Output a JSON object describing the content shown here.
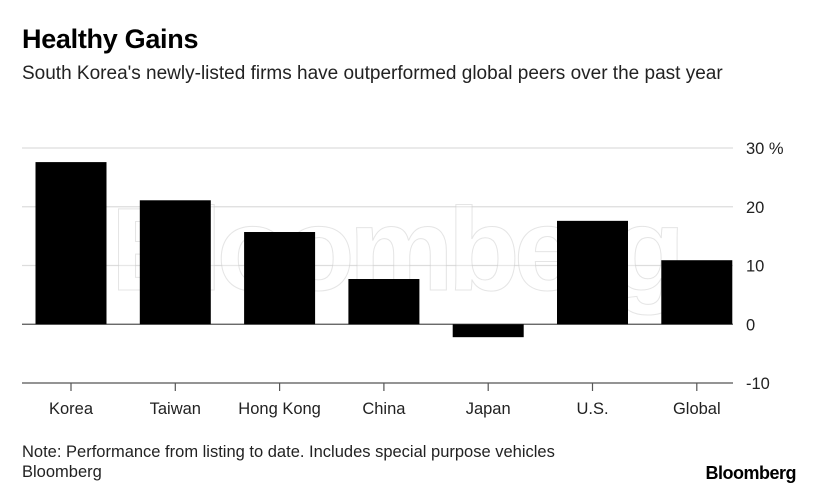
{
  "chart_data": {
    "type": "bar",
    "title": "Healthy Gains",
    "subtitle": "South Korea's newly-listed firms have outperformed global peers over the past year",
    "categories": [
      "Korea",
      "Taiwan",
      "Hong Kong",
      "China",
      "Japan",
      "U.S.",
      "Global"
    ],
    "values": [
      27.6,
      21.1,
      15.7,
      7.7,
      -2.2,
      17.6,
      10.9
    ],
    "ylim": [
      -10,
      30
    ],
    "yticks": [
      30,
      20,
      10,
      0,
      -10
    ],
    "ytick_labels": [
      "30 %",
      "20",
      "10",
      "0",
      "-10"
    ],
    "xlabel": "",
    "ylabel": "",
    "grid": true,
    "bar_color": "#000000",
    "watermark": "Bloomberg",
    "note": "Note: Performance from listing to date. Includes special purpose vehicles",
    "source": "Bloomberg",
    "logo": "Bloomberg"
  }
}
